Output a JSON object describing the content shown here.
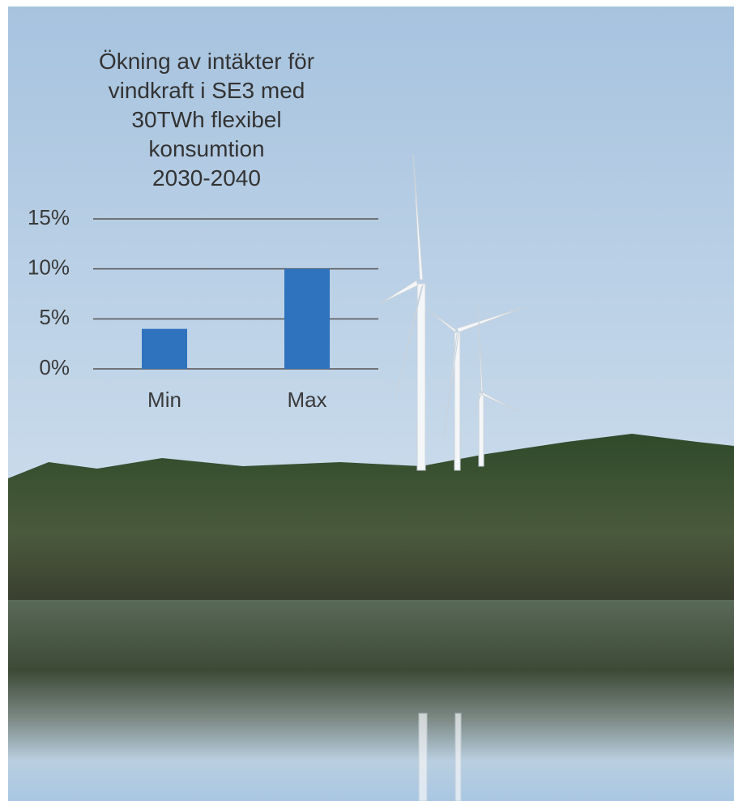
{
  "chart_data": {
    "type": "bar",
    "title": "Ökning av intäkter för\nvindkraft i SE3 med\n30TWh flexibel\nkonsumtion\n2030-2040",
    "categories": [
      "Min",
      "Max"
    ],
    "values": [
      4,
      10
    ],
    "color": "#2f72bd",
    "ylim": [
      0,
      15
    ],
    "yticks": [
      {
        "value": 0,
        "label": "0%"
      },
      {
        "value": 5,
        "label": "5%"
      },
      {
        "value": 10,
        "label": "10%"
      },
      {
        "value": 15,
        "label": "15%"
      }
    ],
    "grid": true
  }
}
